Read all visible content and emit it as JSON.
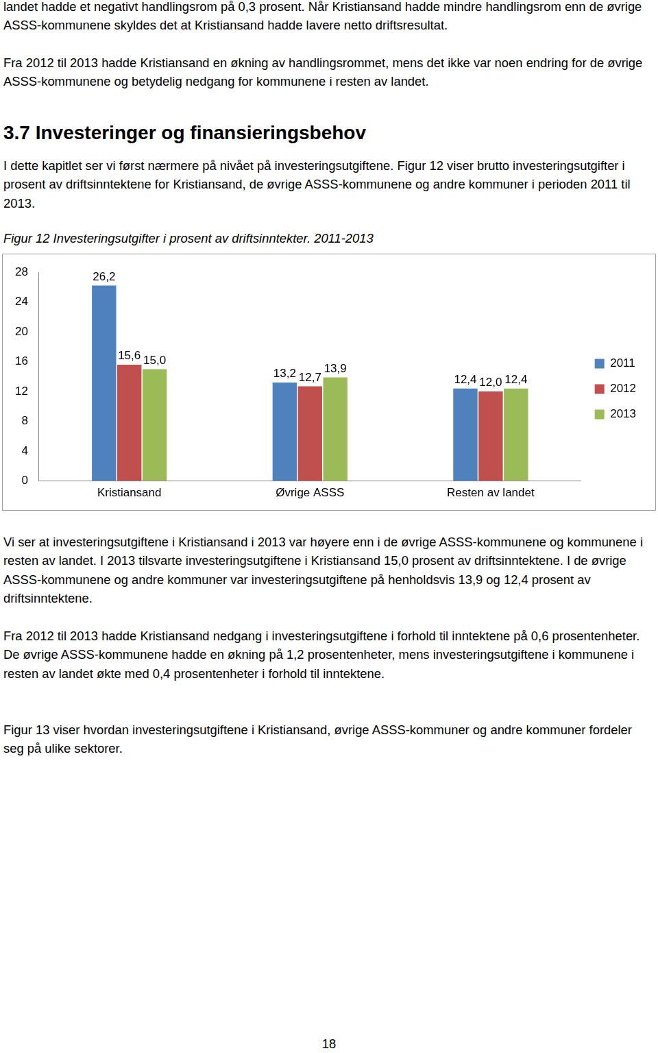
{
  "paragraphs_top": [
    "landet hadde et negativt handlingsrom på 0,3 prosent. Når Kristiansand hadde mindre handlingsrom enn de øvrige ASSS-kommunene skyldes det at Kristiansand hadde lavere netto driftsresultat.",
    "Fra 2012 til 2013 hadde Kristiansand en økning av handlingsrommet, mens det ikke var noen endring for de øvrige ASSS-kommunene og betydelig nedgang for kommunene i resten av landet."
  ],
  "heading": "3.7 Investeringer og finansieringsbehov",
  "intro": "I dette kapitlet ser vi først nærmere på nivået på investeringsutgiftene. Figur 12 viser brutto investeringsutgifter i prosent av driftsinntektene for Kristiansand, de øvrige ASSS-kommunene og andre kommuner i perioden 2011 til 2013.",
  "caption": "Figur 12 Investeringsutgifter i prosent av driftsinntekter. 2011-2013",
  "chart_data": {
    "type": "bar",
    "categories": [
      "Kristiansand",
      "Øvrige ASSS",
      "Resten av landet"
    ],
    "series": [
      {
        "name": "2011",
        "color": "#4f81bd",
        "values": [
          26.2,
          13.2,
          12.4
        ],
        "value_labels": [
          "26,2",
          "13,2",
          "12,4"
        ]
      },
      {
        "name": "2012",
        "color": "#c0504d",
        "values": [
          15.6,
          12.7,
          12.0
        ],
        "value_labels": [
          "15,6",
          "12,7",
          "12,0"
        ]
      },
      {
        "name": "2013",
        "color": "#9bbb59",
        "values": [
          15.0,
          13.9,
          12.4
        ],
        "value_labels": [
          "15,0",
          "13,9",
          "12,4"
        ]
      }
    ],
    "ylim": [
      0,
      28
    ],
    "yticks": [
      0,
      4,
      8,
      12,
      16,
      20,
      24,
      28
    ],
    "grid": false,
    "legend": "right",
    "data_labels": true
  },
  "paragraphs_bottom": [
    "Vi ser at investeringsutgiftene i Kristiansand i 2013 var høyere enn i de øvrige ASSS-kommunene og kommunene i resten av landet. I 2013 tilsvarte investeringsutgiftene i Kristiansand 15,0 prosent av driftsinntektene. I de øvrige ASSS-kommunene og andre kommuner var investeringsutgiftene på henholdsvis 13,9 og 12,4 prosent av driftsinntektene.",
    "Fra 2012 til 2013 hadde Kristiansand nedgang i investeringsutgiftene i forhold til inntektene på 0,6 prosentenheter. De øvrige ASSS-kommunene hadde en økning på 1,2 prosentenheter, mens investeringsutgiftene i kommunene i resten av landet økte med 0,4 prosentenheter i forhold til inntektene.",
    "Figur 13 viser hvordan investeringsutgiftene i Kristiansand, øvrige ASSS-kommuner og andre kommuner fordeler seg på ulike sektorer."
  ],
  "page_number": "18"
}
